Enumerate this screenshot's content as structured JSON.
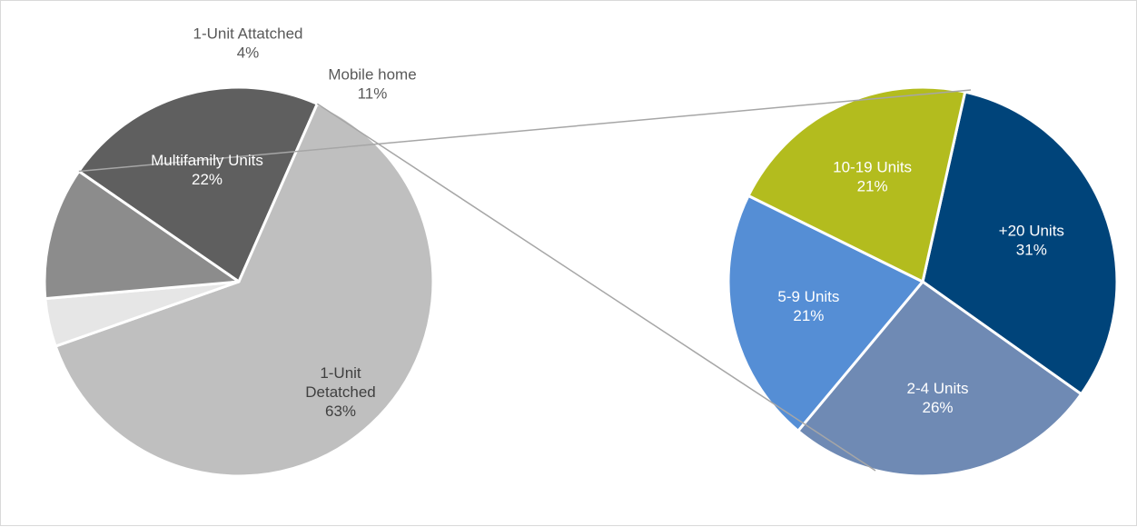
{
  "chart_data": [
    {
      "type": "pie",
      "slices": [
        {
          "label": "Multifamily Units",
          "value": 22,
          "color": "#5f5f5f",
          "label_lines": [
            "Multifamily Units",
            "22%"
          ],
          "label_color": "#ffffff",
          "label_pos": "inside"
        },
        {
          "label": "1-Unit Detatched",
          "value": 63,
          "color": "#bfbfbf",
          "label_lines": [
            "1-Unit",
            "Detatched",
            "63%"
          ],
          "label_color": "#404040",
          "label_pos": "inside"
        },
        {
          "label": "1-Unit Attatched",
          "value": 4,
          "color": "#e6e6e6",
          "label_lines": [
            "1-Unit Attatched",
            "4%"
          ],
          "label_color": "#595959",
          "label_pos": "outside"
        },
        {
          "label": "Mobile home",
          "value": 11,
          "color": "#8c8c8c",
          "label_lines": [
            "Mobile home",
            "11%"
          ],
          "label_color": "#595959",
          "label_pos": "outside"
        }
      ]
    },
    {
      "type": "pie",
      "slices": [
        {
          "label": "+20 Units",
          "value": 31,
          "color": "#00447a",
          "label_lines": [
            "+20 Units",
            "31%"
          ],
          "label_color": "#ffffff"
        },
        {
          "label": "2-4 Units",
          "value": 26,
          "color": "#6f8ab4",
          "label_lines": [
            "2-4 Units",
            "26%"
          ],
          "label_color": "#ffffff"
        },
        {
          "label": "5-9 Units",
          "value": 21,
          "color": "#558ed5",
          "label_lines": [
            "5-9 Units",
            "21%"
          ],
          "label_color": "#ffffff"
        },
        {
          "label": "10-19 Units",
          "value": 21,
          "color": "#b3bc1e",
          "label_lines": [
            "10-19 Units",
            "21%"
          ],
          "label_color": "#ffffff"
        }
      ]
    }
  ]
}
